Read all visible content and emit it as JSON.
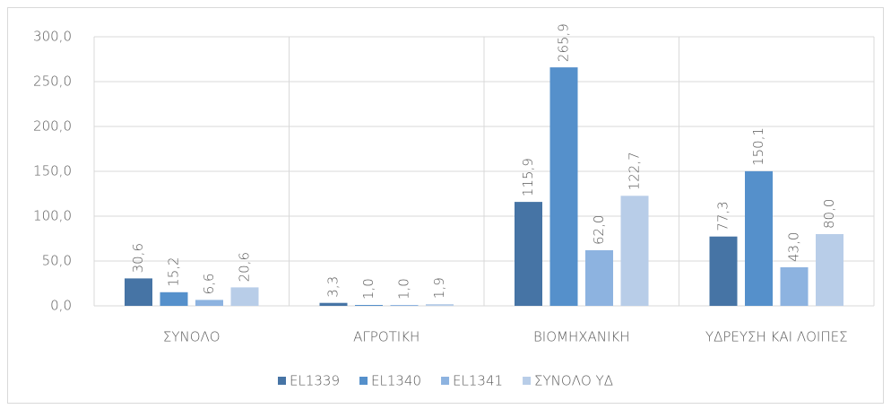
{
  "chart_data": {
    "type": "bar",
    "categories": [
      "ΣΥΝΟΛΟ",
      "ΑΓΡΟΤΙΚΗ",
      "ΒΙΟΜΗΧΑΝΙΚΗ",
      "ΥΔΡΕΥΣΗ ΚΑΙ ΛΟΙΠΕΣ"
    ],
    "series": [
      {
        "name": "EL1339",
        "color": "#4674a5",
        "values": [
          30.6,
          3.3,
          115.9,
          77.3
        ],
        "value_labels": [
          "30,6",
          "3,3",
          "115,9",
          "77,3"
        ]
      },
      {
        "name": "EL1340",
        "color": "#5590cb",
        "values": [
          15.2,
          1.0,
          265.9,
          150.1
        ],
        "value_labels": [
          "15,2",
          "1,0",
          "265,9",
          "150,1"
        ]
      },
      {
        "name": "EL1341",
        "color": "#8db3e0",
        "values": [
          6.6,
          1.0,
          62.0,
          43.0
        ],
        "value_labels": [
          "6,6",
          "1,0",
          "62,0",
          "43,0"
        ]
      },
      {
        "name": "ΣΥΝΟΛΟ ΥΔ",
        "color": "#b8cde8",
        "values": [
          20.6,
          1.9,
          122.7,
          80.0
        ],
        "value_labels": [
          "20,6",
          "1,9",
          "122,7",
          "80,0"
        ]
      }
    ],
    "ylim": [
      0,
      300
    ],
    "yticks": [
      {
        "value": 0,
        "label": "0,0"
      },
      {
        "value": 50,
        "label": "50,0"
      },
      {
        "value": 100,
        "label": "100,0"
      },
      {
        "value": 150,
        "label": "150,0"
      },
      {
        "value": 200,
        "label": "200,0"
      },
      {
        "value": 250,
        "label": "250,0"
      },
      {
        "value": 300,
        "label": "300,0"
      }
    ],
    "grid": true,
    "legend": "bottom"
  }
}
